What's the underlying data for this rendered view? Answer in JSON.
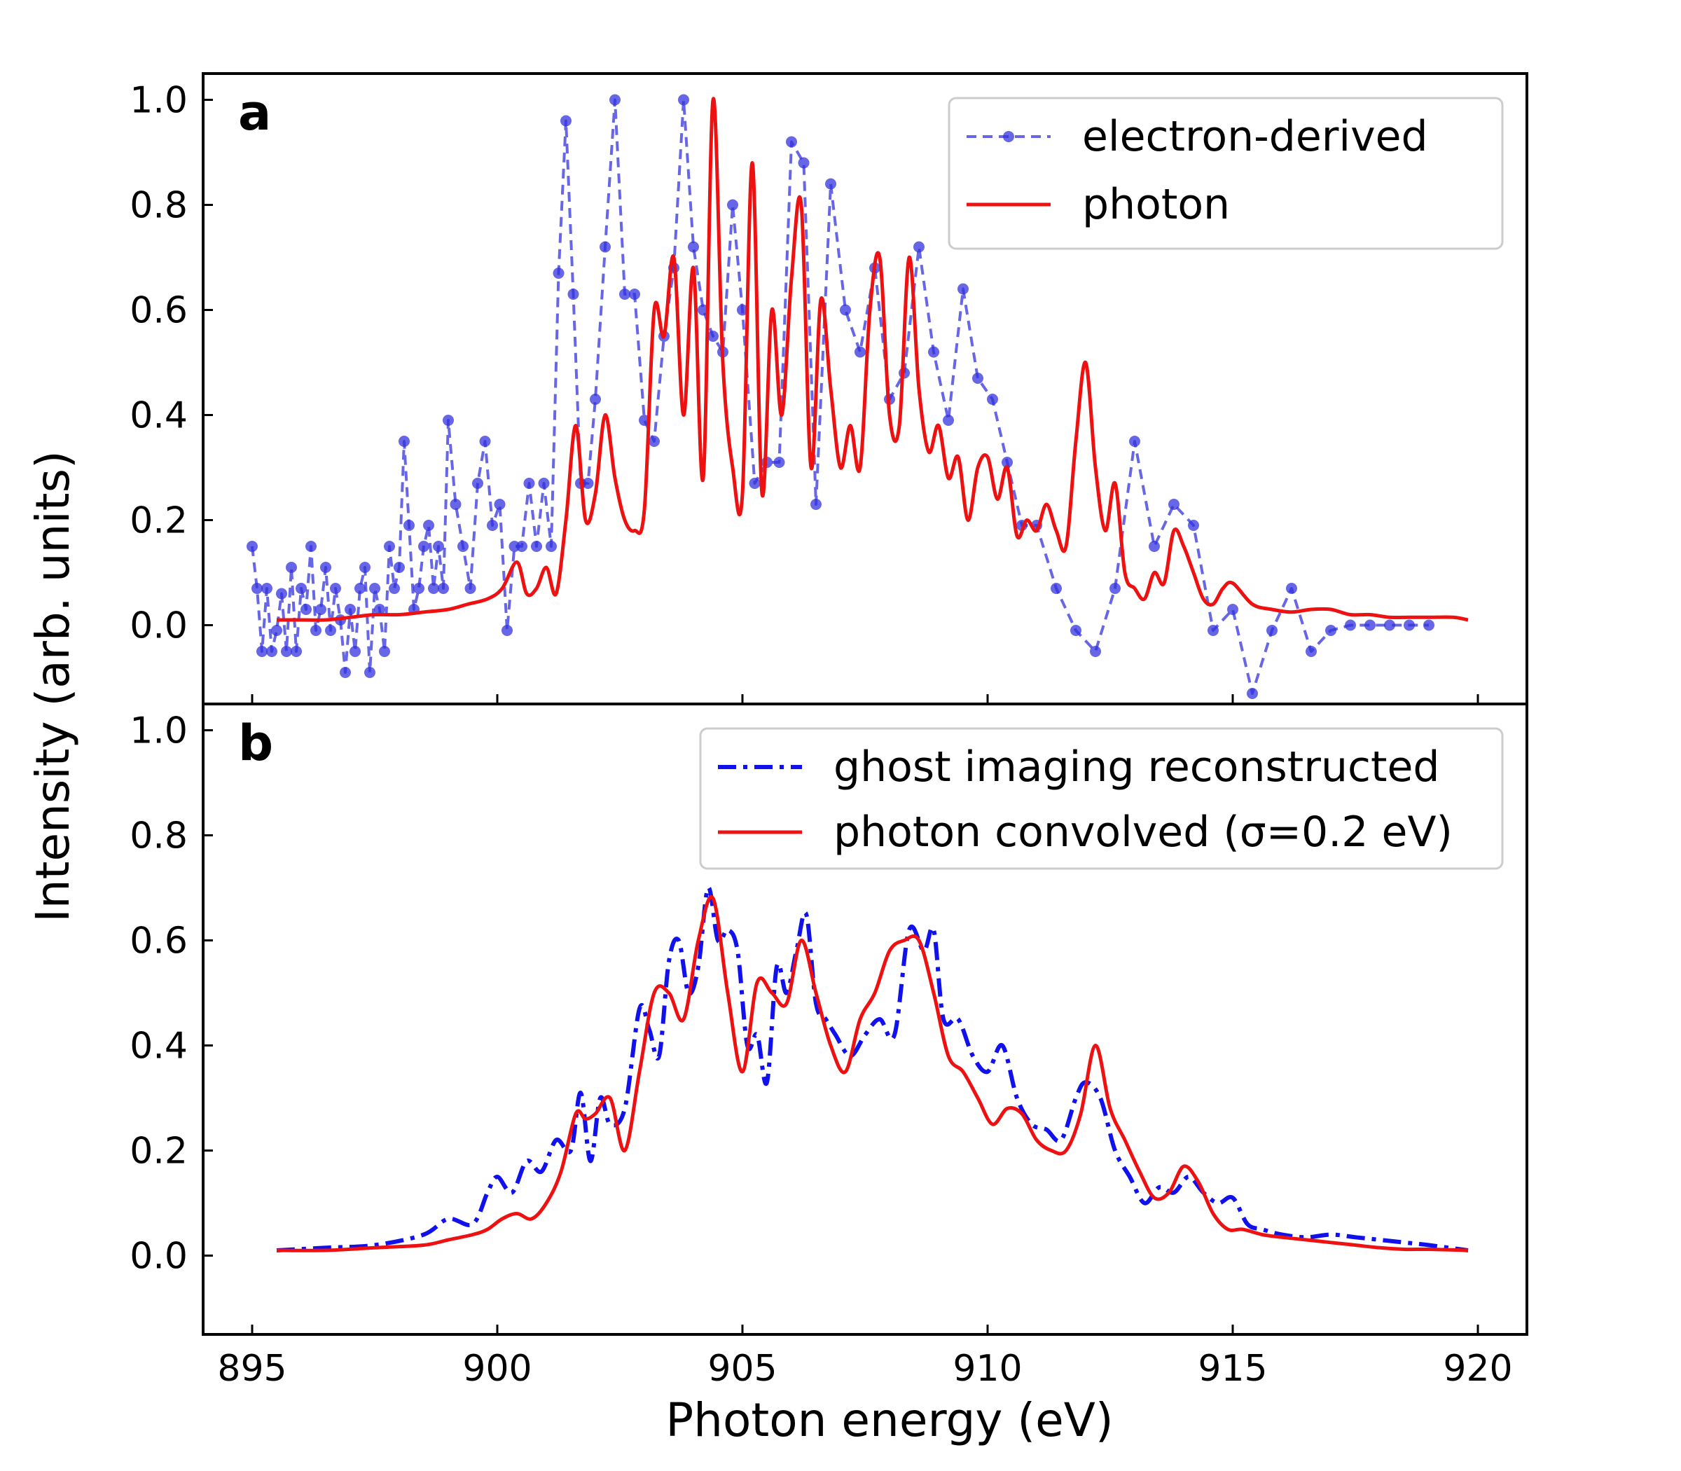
{
  "figure": {
    "xlabel": "Photon energy (eV)",
    "ylabel": "Intensity (arb. units)"
  },
  "chart_data": [
    {
      "type": "line",
      "panel_label": "a",
      "xlim": [
        894,
        921
      ],
      "ylim": [
        -0.15,
        1.05
      ],
      "xticks": [
        895,
        900,
        905,
        910,
        915,
        920
      ],
      "yticks": [
        0.0,
        0.2,
        0.4,
        0.6,
        0.8,
        1.0
      ],
      "ytick_labels": [
        "0.0",
        "0.2",
        "0.4",
        "0.6",
        "0.8",
        "1.0"
      ],
      "show_x_tick_labels": false,
      "legend_position": "top-right",
      "series": [
        {
          "name": "electron-derived",
          "color": "#3333dd",
          "style": "dashed-markers",
          "x": [
            895.0,
            895.1,
            895.2,
            895.3,
            895.4,
            895.5,
            895.6,
            895.7,
            895.8,
            895.9,
            896.0,
            896.1,
            896.2,
            896.3,
            896.4,
            896.5,
            896.6,
            896.7,
            896.8,
            896.9,
            897.0,
            897.1,
            897.2,
            897.3,
            897.4,
            897.5,
            897.6,
            897.7,
            897.8,
            897.9,
            898.0,
            898.1,
            898.2,
            898.3,
            898.4,
            898.5,
            898.6,
            898.7,
            898.8,
            898.9,
            899.0,
            899.15,
            899.3,
            899.45,
            899.6,
            899.75,
            899.9,
            900.05,
            900.2,
            900.35,
            900.5,
            900.65,
            900.8,
            900.95,
            901.1,
            901.25,
            901.4,
            901.55,
            901.7,
            901.85,
            902.0,
            902.2,
            902.4,
            902.6,
            902.8,
            903.0,
            903.2,
            903.4,
            903.6,
            903.8,
            904.0,
            904.2,
            904.4,
            904.6,
            904.8,
            905.0,
            905.25,
            905.5,
            905.75,
            906.0,
            906.25,
            906.5,
            906.8,
            907.1,
            907.4,
            907.7,
            908.0,
            908.3,
            908.6,
            908.9,
            909.2,
            909.5,
            909.8,
            910.1,
            910.4,
            910.7,
            911.0,
            911.4,
            911.8,
            912.2,
            912.6,
            913.0,
            913.4,
            913.8,
            914.2,
            914.6,
            915.0,
            915.4,
            915.8,
            916.2,
            916.6,
            917.0,
            917.4,
            917.8,
            918.2,
            918.6,
            919.0
          ],
          "y": [
            0.15,
            0.07,
            -0.05,
            0.07,
            -0.05,
            -0.01,
            0.06,
            -0.05,
            0.11,
            -0.05,
            0.07,
            0.03,
            0.15,
            -0.01,
            0.03,
            0.11,
            -0.01,
            0.07,
            0.01,
            -0.09,
            0.03,
            -0.05,
            0.07,
            0.11,
            -0.09,
            0.07,
            0.03,
            -0.05,
            0.15,
            0.07,
            0.11,
            0.35,
            0.19,
            0.03,
            0.07,
            0.15,
            0.19,
            0.07,
            0.15,
            0.07,
            0.39,
            0.23,
            0.15,
            0.07,
            0.27,
            0.35,
            0.19,
            0.23,
            -0.01,
            0.15,
            0.15,
            0.27,
            0.15,
            0.27,
            0.15,
            0.67,
            0.96,
            0.63,
            0.27,
            0.27,
            0.43,
            0.72,
            1.0,
            0.63,
            0.63,
            0.39,
            0.35,
            0.55,
            0.68,
            1.0,
            0.72,
            0.6,
            0.55,
            0.52,
            0.8,
            0.6,
            0.27,
            0.31,
            0.31,
            0.92,
            0.88,
            0.23,
            0.84,
            0.6,
            0.52,
            0.68,
            0.43,
            0.48,
            0.72,
            0.52,
            0.39,
            0.64,
            0.47,
            0.43,
            0.31,
            0.19,
            0.19,
            0.07,
            -0.01,
            -0.05,
            0.07,
            0.35,
            0.15,
            0.23,
            0.19,
            -0.01,
            0.03,
            -0.13,
            -0.01,
            0.07,
            -0.05,
            -0.01,
            0.0,
            0.0,
            0.0,
            0.0,
            0.0
          ]
        },
        {
          "name": "photon",
          "color": "#ee1111",
          "style": "solid",
          "x": [
            895.5,
            896.0,
            896.5,
            897.0,
            897.5,
            898.0,
            898.5,
            899.0,
            899.4,
            899.8,
            900.1,
            900.4,
            900.6,
            900.8,
            901.0,
            901.2,
            901.4,
            901.6,
            901.8,
            902.0,
            902.2,
            902.4,
            902.6,
            902.8,
            903.0,
            903.2,
            903.4,
            903.6,
            903.8,
            904.0,
            904.2,
            904.4,
            904.6,
            904.8,
            905.0,
            905.2,
            905.4,
            905.6,
            905.8,
            906.0,
            906.2,
            906.4,
            906.6,
            906.8,
            907.0,
            907.2,
            907.4,
            907.6,
            907.8,
            908.0,
            908.2,
            908.4,
            908.6,
            908.8,
            909.0,
            909.2,
            909.4,
            909.6,
            909.8,
            910.0,
            910.2,
            910.4,
            910.6,
            910.8,
            911.0,
            911.2,
            911.4,
            911.6,
            911.8,
            912.0,
            912.2,
            912.4,
            912.6,
            912.8,
            913.0,
            913.2,
            913.4,
            913.6,
            913.8,
            914.0,
            914.2,
            914.4,
            914.6,
            914.8,
            915.0,
            915.4,
            915.8,
            916.2,
            916.6,
            917.0,
            917.4,
            917.8,
            918.2,
            918.6,
            919.0,
            919.5,
            919.8
          ],
          "y": [
            0.01,
            0.01,
            0.01,
            0.015,
            0.02,
            0.02,
            0.025,
            0.03,
            0.04,
            0.05,
            0.07,
            0.12,
            0.06,
            0.07,
            0.11,
            0.06,
            0.2,
            0.38,
            0.2,
            0.25,
            0.4,
            0.28,
            0.2,
            0.18,
            0.22,
            0.6,
            0.55,
            0.7,
            0.4,
            0.68,
            0.28,
            1.0,
            0.5,
            0.3,
            0.25,
            0.88,
            0.25,
            0.6,
            0.4,
            0.66,
            0.8,
            0.3,
            0.62,
            0.45,
            0.3,
            0.38,
            0.3,
            0.6,
            0.7,
            0.4,
            0.38,
            0.7,
            0.45,
            0.33,
            0.38,
            0.28,
            0.32,
            0.2,
            0.3,
            0.32,
            0.24,
            0.3,
            0.17,
            0.2,
            0.18,
            0.23,
            0.18,
            0.15,
            0.35,
            0.5,
            0.3,
            0.18,
            0.27,
            0.1,
            0.07,
            0.05,
            0.1,
            0.08,
            0.18,
            0.15,
            0.1,
            0.05,
            0.04,
            0.07,
            0.08,
            0.04,
            0.03,
            0.025,
            0.03,
            0.03,
            0.02,
            0.02,
            0.015,
            0.015,
            0.015,
            0.015,
            0.01
          ]
        }
      ]
    },
    {
      "type": "line",
      "panel_label": "b",
      "xlim": [
        894,
        921
      ],
      "ylim": [
        -0.15,
        1.05
      ],
      "xticks": [
        895,
        900,
        905,
        910,
        915,
        920
      ],
      "xtick_labels": [
        "895",
        "900",
        "905",
        "910",
        "915",
        "920"
      ],
      "yticks": [
        0.0,
        0.2,
        0.4,
        0.6,
        0.8,
        1.0
      ],
      "ytick_labels": [
        "0.0",
        "0.2",
        "0.4",
        "0.6",
        "0.8",
        "1.0"
      ],
      "show_x_tick_labels": true,
      "legend_position": "top-right",
      "series": [
        {
          "name": "ghost imaging reconstructed",
          "color": "#1111ee",
          "style": "dashdot",
          "x": [
            895.5,
            896.5,
            897.5,
            898.5,
            899.0,
            899.5,
            899.8,
            900.0,
            900.3,
            900.6,
            900.9,
            901.2,
            901.5,
            901.7,
            901.9,
            902.1,
            902.3,
            902.6,
            902.9,
            903.1,
            903.3,
            903.5,
            903.7,
            903.9,
            904.1,
            904.3,
            904.5,
            904.7,
            904.9,
            905.1,
            905.3,
            905.5,
            905.7,
            905.9,
            906.1,
            906.3,
            906.5,
            906.7,
            906.9,
            907.2,
            907.5,
            907.8,
            908.1,
            908.4,
            908.7,
            908.9,
            909.1,
            909.4,
            909.7,
            910.0,
            910.3,
            910.6,
            910.9,
            911.2,
            911.5,
            911.8,
            912.0,
            912.3,
            912.6,
            912.9,
            913.2,
            913.5,
            913.8,
            914.1,
            914.4,
            914.7,
            915.0,
            915.3,
            915.6,
            916.0,
            916.5,
            917.0,
            917.5,
            918.0,
            918.5,
            919.0,
            919.8
          ],
          "y": [
            0.01,
            0.015,
            0.02,
            0.04,
            0.07,
            0.06,
            0.12,
            0.15,
            0.12,
            0.18,
            0.16,
            0.22,
            0.2,
            0.31,
            0.18,
            0.3,
            0.25,
            0.28,
            0.47,
            0.43,
            0.38,
            0.56,
            0.6,
            0.5,
            0.55,
            0.7,
            0.6,
            0.62,
            0.58,
            0.4,
            0.42,
            0.33,
            0.55,
            0.5,
            0.58,
            0.65,
            0.48,
            0.45,
            0.42,
            0.38,
            0.42,
            0.45,
            0.42,
            0.62,
            0.58,
            0.62,
            0.45,
            0.45,
            0.38,
            0.35,
            0.4,
            0.3,
            0.25,
            0.24,
            0.22,
            0.3,
            0.33,
            0.3,
            0.2,
            0.15,
            0.1,
            0.13,
            0.12,
            0.15,
            0.12,
            0.1,
            0.11,
            0.06,
            0.05,
            0.04,
            0.035,
            0.04,
            0.035,
            0.03,
            0.025,
            0.02,
            0.01
          ]
        },
        {
          "name": "photon convolved (σ=0.2 eV)",
          "color": "#ee1111",
          "style": "solid",
          "x": [
            895.5,
            896.5,
            897.5,
            898.5,
            899.0,
            899.5,
            899.8,
            900.1,
            900.4,
            900.7,
            901.0,
            901.3,
            901.6,
            901.8,
            902.0,
            902.3,
            902.6,
            902.9,
            903.2,
            903.5,
            903.8,
            904.1,
            904.4,
            904.7,
            905.0,
            905.3,
            905.6,
            905.9,
            906.2,
            906.5,
            906.8,
            907.1,
            907.4,
            907.7,
            908.0,
            908.3,
            908.6,
            908.9,
            909.2,
            909.5,
            909.8,
            910.1,
            910.4,
            910.7,
            911.0,
            911.3,
            911.6,
            911.9,
            912.2,
            912.5,
            912.8,
            913.1,
            913.4,
            913.7,
            914.0,
            914.3,
            914.6,
            914.9,
            915.2,
            915.6,
            916.0,
            916.5,
            917.0,
            917.5,
            918.0,
            918.5,
            919.0,
            919.8
          ],
          "y": [
            0.01,
            0.01,
            0.015,
            0.02,
            0.03,
            0.04,
            0.05,
            0.07,
            0.08,
            0.07,
            0.1,
            0.16,
            0.27,
            0.26,
            0.27,
            0.3,
            0.2,
            0.35,
            0.5,
            0.5,
            0.45,
            0.6,
            0.68,
            0.5,
            0.35,
            0.52,
            0.5,
            0.48,
            0.6,
            0.5,
            0.4,
            0.35,
            0.45,
            0.5,
            0.58,
            0.6,
            0.6,
            0.5,
            0.38,
            0.35,
            0.3,
            0.25,
            0.28,
            0.27,
            0.22,
            0.2,
            0.2,
            0.27,
            0.4,
            0.28,
            0.22,
            0.16,
            0.11,
            0.12,
            0.17,
            0.14,
            0.08,
            0.05,
            0.05,
            0.04,
            0.035,
            0.03,
            0.025,
            0.02,
            0.015,
            0.012,
            0.012,
            0.01
          ]
        }
      ]
    }
  ]
}
